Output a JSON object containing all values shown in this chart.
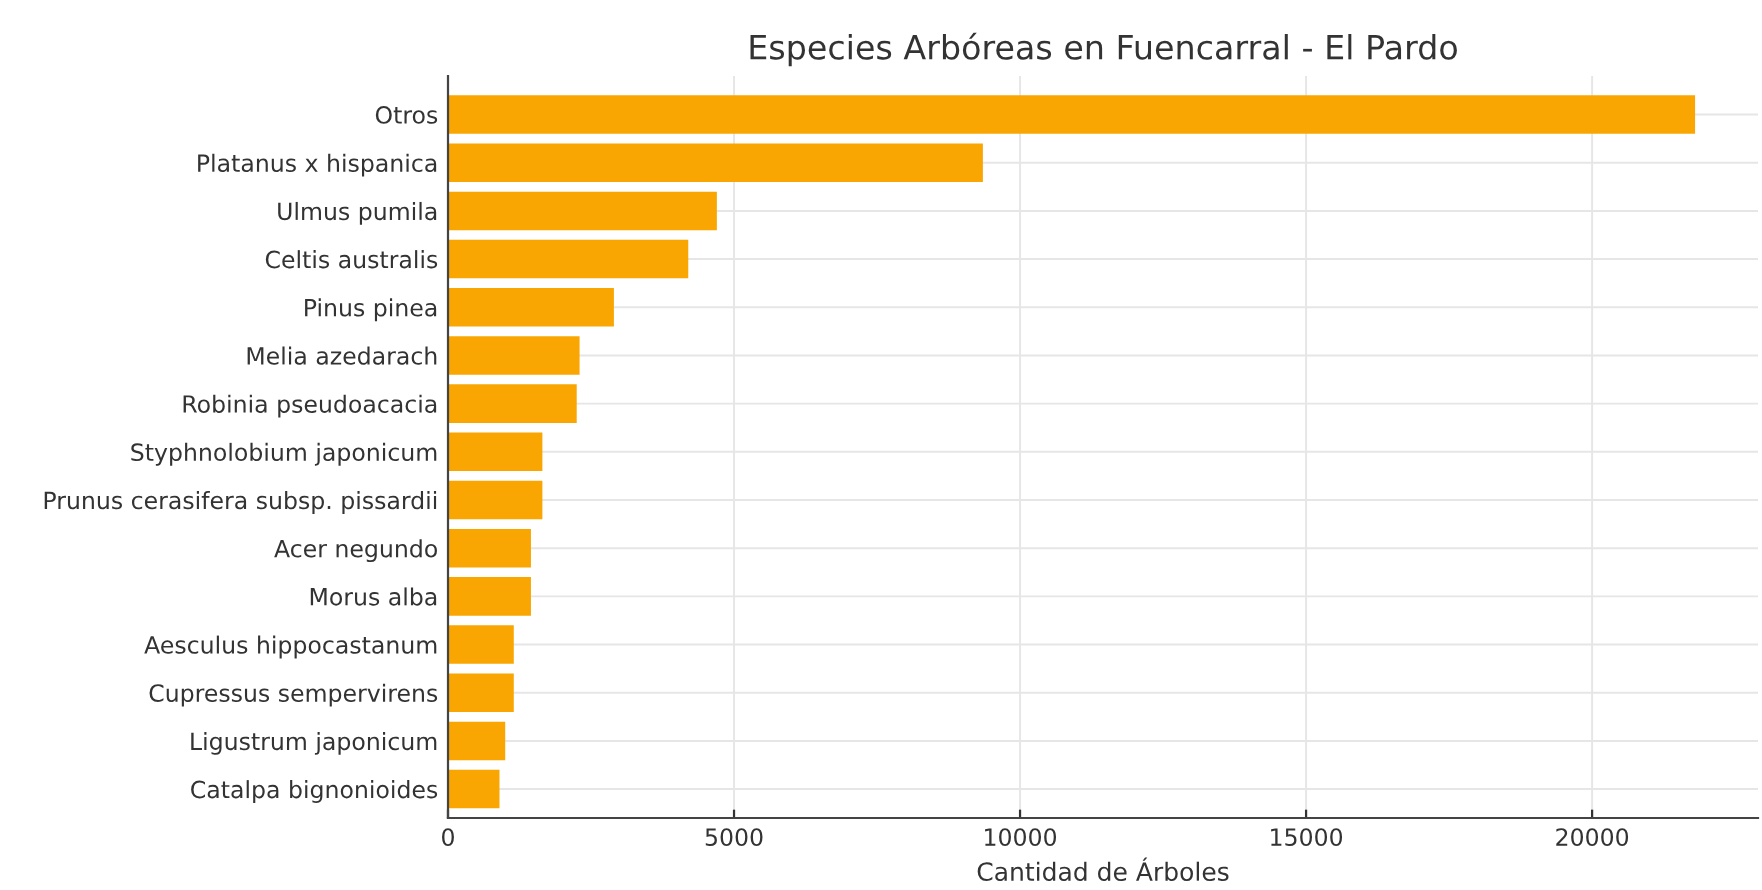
{
  "chart_data": {
    "type": "bar",
    "orientation": "horizontal",
    "title": "Especies Arbóreas en Fuencarral - El Pardo",
    "xlabel": "Cantidad de Árboles",
    "categories": [
      "Otros",
      "Platanus x hispanica",
      "Ulmus pumila",
      "Celtis australis",
      "Pinus pinea",
      "Melia azedarach",
      "Robinia pseudoacacia",
      "Styphnolobium japonicum",
      "Prunus cerasifera subsp. pissardii",
      "Acer negundo",
      "Morus alba",
      "Aesculus hippocastanum",
      "Cupressus sempervirens",
      "Ligustrum japonicum",
      "Catalpa bignonioides"
    ],
    "values": [
      21800,
      9350,
      4700,
      4200,
      2900,
      2300,
      2250,
      1650,
      1650,
      1450,
      1450,
      1150,
      1150,
      1000,
      900
    ],
    "color": "#f9a602",
    "xlim": [
      0,
      22900
    ],
    "xticks": [
      0,
      5000,
      10000,
      15000,
      20000
    ],
    "grid": true
  }
}
